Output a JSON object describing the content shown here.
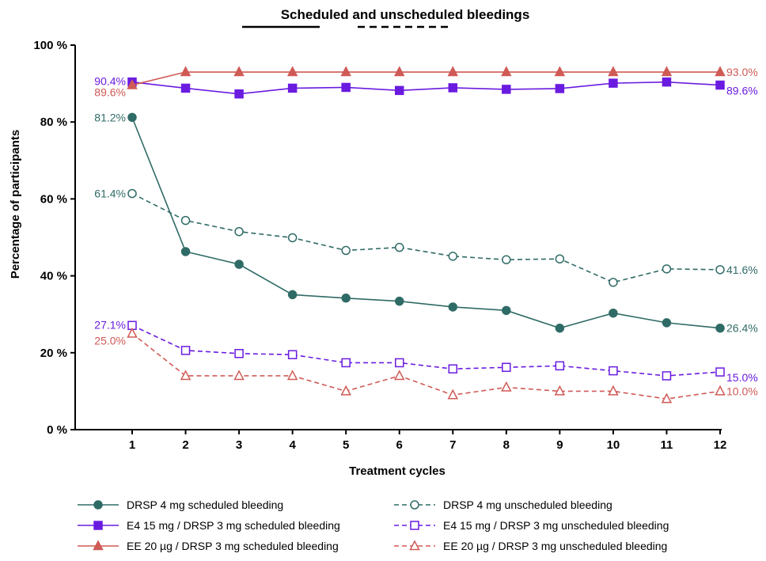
{
  "chart_data": {
    "type": "line",
    "title": "Scheduled and unscheduled bleedings",
    "title_legend": [
      {
        "style": "solid",
        "color": "#000000"
      },
      {
        "style": "dashed",
        "color": "#000000"
      }
    ],
    "xlabel": "Treatment cycles",
    "ylabel": "Percentage of participants",
    "x": [
      1,
      2,
      3,
      4,
      5,
      6,
      7,
      8,
      9,
      10,
      11,
      12
    ],
    "x_tick_labels": [
      "1",
      "2",
      "3",
      "4",
      "5",
      "6",
      "7",
      "8",
      "9",
      "10",
      "11",
      "12"
    ],
    "ylim": [
      0,
      100
    ],
    "y_ticks": [
      0,
      20,
      40,
      60,
      80,
      100
    ],
    "y_tick_labels": [
      "0 %",
      "20 %",
      "40 %",
      "60 %",
      "80 %",
      "100 %"
    ],
    "grid": false,
    "legend_position": "bottom",
    "series": [
      {
        "name": "DRSP 4 mg scheduled bleeding",
        "color": "#2f6b66",
        "line": "solid",
        "marker": "circle-filled",
        "values": [
          81.2,
          46.3,
          43.0,
          35.1,
          34.2,
          33.4,
          31.9,
          31.0,
          26.4,
          30.3,
          27.8,
          26.4
        ],
        "start_label": "81.2%",
        "end_label": "26.4%"
      },
      {
        "name": "DRSP 4 mg unscheduled bleeding",
        "color": "#2f6b66",
        "line": "dashed",
        "marker": "circle-open",
        "values": [
          61.4,
          54.4,
          51.5,
          49.9,
          46.6,
          47.4,
          45.1,
          44.2,
          44.4,
          38.3,
          41.8,
          41.6
        ],
        "start_label": "61.4%",
        "end_label": "41.6%"
      },
      {
        "name": "E4 15 mg / DRSP 3 mg scheduled bleeding",
        "color": "#6a1be0",
        "line": "solid",
        "marker": "square-filled",
        "values": [
          90.4,
          88.8,
          87.3,
          88.8,
          89.0,
          88.2,
          88.9,
          88.5,
          88.7,
          90.1,
          90.4,
          89.6
        ],
        "start_label": "90.4%",
        "end_label": "89.6%"
      },
      {
        "name": "E4 15 mg / DRSP 3 mg unscheduled bleeding",
        "color": "#6a1be0",
        "line": "dashed",
        "marker": "square-open",
        "values": [
          27.1,
          20.6,
          19.8,
          19.5,
          17.4,
          17.4,
          15.8,
          16.2,
          16.6,
          15.3,
          14.0,
          15.0
        ],
        "start_label": "27.1%",
        "end_label": "15.0%"
      },
      {
        "name": "EE 20 µg / DRSP 3 mg scheduled bleeding",
        "color": "#d05a55",
        "line": "solid",
        "marker": "triangle-filled",
        "values": [
          89.6,
          93.0,
          93.0,
          93.0,
          93.0,
          93.0,
          93.0,
          93.0,
          93.0,
          93.0,
          93.0,
          93.0
        ],
        "start_label": "89.6%",
        "end_label": "93.0%"
      },
      {
        "name": "EE 20 µg / DRSP 3 mg unscheduled bleeding",
        "color": "#d05a55",
        "line": "dashed",
        "marker": "triangle-open",
        "values": [
          25.0,
          14.0,
          14.0,
          14.0,
          10.0,
          14.0,
          9.0,
          11.0,
          10.0,
          10.0,
          8.0,
          10.0
        ],
        "start_label": "25.0%",
        "end_label": "10.0%"
      }
    ]
  }
}
